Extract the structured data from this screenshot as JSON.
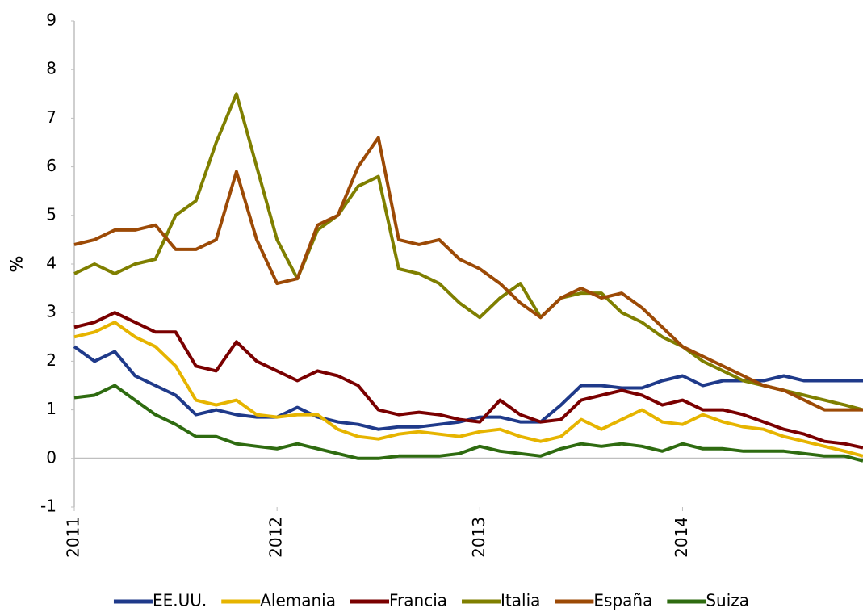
{
  "chart_data": {
    "type": "line",
    "y_label": "%",
    "x": [
      2011.0,
      2011.1,
      2011.2,
      2011.3,
      2011.4,
      2011.5,
      2011.6,
      2011.7,
      2011.8,
      2011.9,
      2012.0,
      2012.1,
      2012.2,
      2012.3,
      2012.4,
      2012.5,
      2012.6,
      2012.7,
      2012.8,
      2012.9,
      2013.0,
      2013.1,
      2013.2,
      2013.3,
      2013.4,
      2013.5,
      2013.6,
      2013.7,
      2013.8,
      2013.9,
      2014.0,
      2014.1,
      2014.2,
      2014.3,
      2014.4,
      2014.5,
      2014.6,
      2014.7,
      2014.8,
      2014.89
    ],
    "series": [
      {
        "name": "EE.UU.",
        "color": "#1f3a8a",
        "values": [
          2.3,
          2.0,
          2.2,
          1.7,
          1.5,
          1.3,
          0.9,
          1.0,
          0.9,
          0.85,
          0.85,
          1.05,
          0.85,
          0.75,
          0.7,
          0.6,
          0.65,
          0.65,
          0.7,
          0.75,
          0.85,
          0.85,
          0.75,
          0.75,
          1.1,
          1.5,
          1.5,
          1.45,
          1.45,
          1.6,
          1.7,
          1.5,
          1.6,
          1.6,
          1.6,
          1.7,
          1.6,
          1.6,
          1.6,
          1.6
        ]
      },
      {
        "name": "Alemania",
        "color": "#e6b400",
        "values": [
          2.5,
          2.6,
          2.8,
          2.5,
          2.3,
          1.9,
          1.2,
          1.1,
          1.2,
          0.9,
          0.85,
          0.9,
          0.9,
          0.6,
          0.45,
          0.4,
          0.5,
          0.55,
          0.5,
          0.45,
          0.55,
          0.6,
          0.45,
          0.35,
          0.45,
          0.8,
          0.6,
          0.8,
          1.0,
          0.75,
          0.7,
          0.9,
          0.75,
          0.65,
          0.6,
          0.45,
          0.35,
          0.25,
          0.15,
          0.05
        ]
      },
      {
        "name": "Francia",
        "color": "#7a0000",
        "values": [
          2.7,
          2.8,
          3.0,
          2.8,
          2.6,
          2.6,
          1.9,
          1.8,
          2.4,
          2.0,
          1.8,
          1.6,
          1.8,
          1.7,
          1.5,
          1.0,
          0.9,
          0.95,
          0.9,
          0.8,
          0.75,
          1.2,
          0.9,
          0.75,
          0.8,
          1.2,
          1.3,
          1.4,
          1.3,
          1.1,
          1.2,
          1.0,
          1.0,
          0.9,
          0.75,
          0.6,
          0.5,
          0.35,
          0.3,
          0.22
        ]
      },
      {
        "name": "Italia",
        "color": "#7f7f00",
        "values": [
          3.8,
          4.0,
          3.8,
          4.0,
          4.1,
          5.0,
          5.3,
          6.5,
          7.5,
          6.0,
          4.5,
          3.7,
          4.7,
          5.0,
          5.6,
          5.8,
          3.9,
          3.8,
          3.6,
          3.2,
          2.9,
          3.3,
          3.6,
          2.9,
          3.3,
          3.4,
          3.4,
          3.0,
          2.8,
          2.5,
          2.3,
          2.0,
          1.8,
          1.6,
          1.5,
          1.4,
          1.3,
          1.2,
          1.1,
          1.0
        ]
      },
      {
        "name": "España",
        "color": "#9c4a06",
        "values": [
          4.4,
          4.5,
          4.7,
          4.7,
          4.8,
          4.3,
          4.3,
          4.5,
          5.9,
          4.5,
          3.6,
          3.7,
          4.8,
          5.0,
          6.0,
          6.6,
          4.5,
          4.4,
          4.5,
          4.1,
          3.9,
          3.6,
          3.2,
          2.9,
          3.3,
          3.5,
          3.3,
          3.4,
          3.1,
          2.7,
          2.3,
          2.1,
          1.9,
          1.7,
          1.5,
          1.4,
          1.2,
          1.0,
          1.0,
          1.0
        ]
      },
      {
        "name": "Suiza",
        "color": "#2e6b10",
        "values": [
          1.25,
          1.3,
          1.5,
          1.2,
          0.9,
          0.7,
          0.45,
          0.45,
          0.3,
          0.25,
          0.2,
          0.3,
          0.2,
          0.1,
          0.0,
          0.0,
          0.05,
          0.05,
          0.05,
          0.1,
          0.25,
          0.15,
          0.1,
          0.05,
          0.2,
          0.3,
          0.25,
          0.3,
          0.25,
          0.15,
          0.3,
          0.2,
          0.2,
          0.15,
          0.15,
          0.15,
          0.1,
          0.05,
          0.05,
          -0.05
        ]
      }
    ],
    "xlim": [
      2011,
      2014.89
    ],
    "xticks": [
      2011,
      2012,
      2013,
      2014
    ],
    "ylim": [
      -1,
      9
    ],
    "yticks": [
      -1,
      0,
      1,
      2,
      3,
      4,
      5,
      6,
      7,
      8,
      9
    ],
    "grid": false,
    "legend": "bottom"
  }
}
